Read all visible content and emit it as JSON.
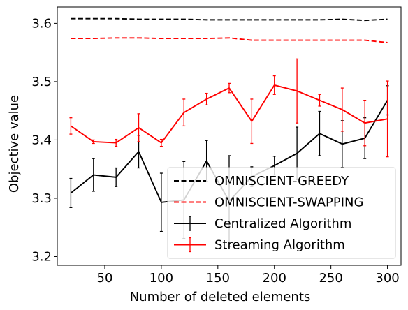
{
  "chart_data": {
    "type": "line",
    "xlabel": "Number of deleted elements",
    "ylabel": "Objective value",
    "xlim": [
      8,
      312
    ],
    "ylim": [
      3.185,
      3.628
    ],
    "xticks": [
      50,
      100,
      150,
      200,
      250,
      300
    ],
    "yticks": [
      3.2,
      3.3,
      3.4,
      3.5,
      3.6
    ],
    "legend_position": "lower-right",
    "x": [
      20,
      40,
      60,
      80,
      100,
      120,
      140,
      160,
      180,
      200,
      220,
      240,
      260,
      280,
      300
    ],
    "series": [
      {
        "name": "OMNISCIENT-GREEDY",
        "color": "#000000",
        "style": "dashed",
        "values": [
          3.608,
          3.608,
          3.608,
          3.607,
          3.607,
          3.607,
          3.606,
          3.606,
          3.606,
          3.606,
          3.606,
          3.606,
          3.607,
          3.605,
          3.607
        ]
      },
      {
        "name": "OMNISCIENT-SWAPPING",
        "color": "#ff0000",
        "style": "dashed",
        "values": [
          3.574,
          3.574,
          3.575,
          3.575,
          3.574,
          3.574,
          3.574,
          3.575,
          3.571,
          3.571,
          3.571,
          3.571,
          3.571,
          3.571,
          3.567
        ]
      },
      {
        "name": "Centralized Algorithm",
        "color": "#000000",
        "style": "solid",
        "values": [
          3.309,
          3.34,
          3.336,
          3.38,
          3.293,
          3.297,
          3.364,
          3.295,
          3.337,
          3.356,
          3.377,
          3.411,
          3.393,
          3.403,
          3.468
        ],
        "errors": [
          0.025,
          0.028,
          0.016,
          0.028,
          0.05,
          0.066,
          0.035,
          0.078,
          0.017,
          0.016,
          0.045,
          0.038,
          0.04,
          0.035,
          0.025
        ]
      },
      {
        "name": "Streaming Algorithm",
        "color": "#ff0000",
        "style": "solid",
        "values": [
          3.424,
          3.397,
          3.395,
          3.421,
          3.395,
          3.447,
          3.47,
          3.489,
          3.432,
          3.494,
          3.484,
          3.468,
          3.452,
          3.429,
          3.436
        ],
        "errors": [
          0.014,
          0.003,
          0.006,
          0.024,
          0.006,
          0.023,
          0.01,
          0.008,
          0.038,
          0.016,
          0.055,
          0.01,
          0.037,
          0.039,
          0.065
        ]
      }
    ]
  }
}
